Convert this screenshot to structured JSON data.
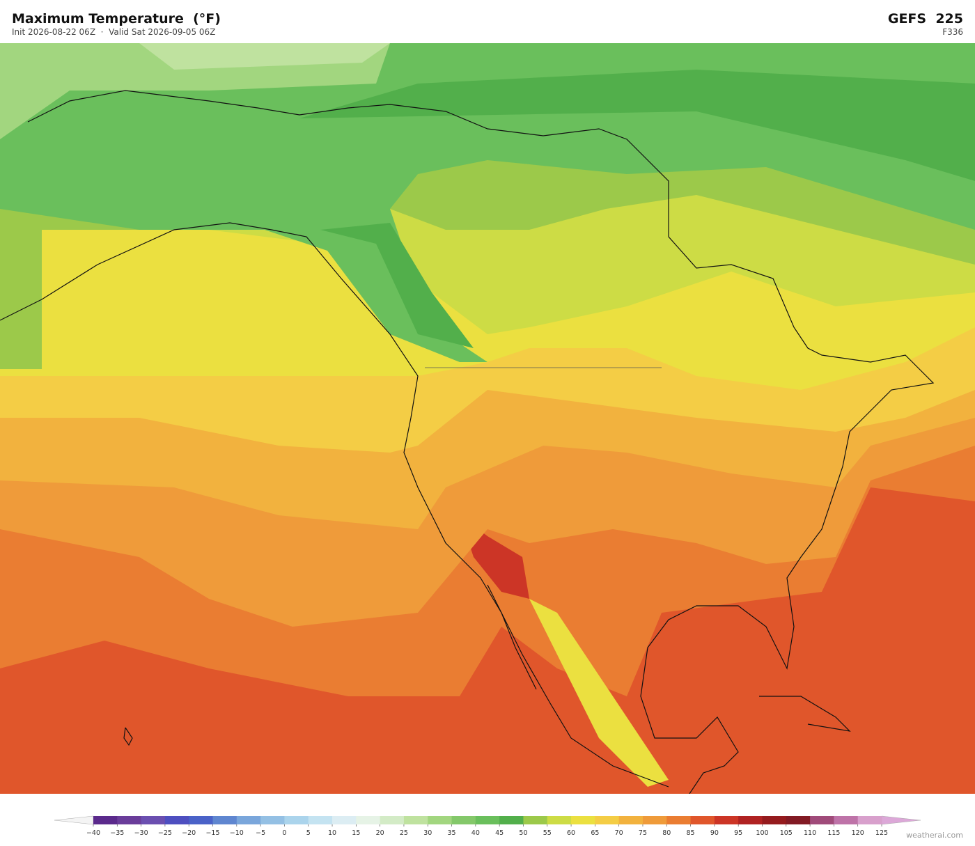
{
  "header": {
    "title": "Maximum Temperature  (°F)",
    "subtitle": "Init 2026-08-22 06Z  ·  Valid Sat 2026-09-05 06Z",
    "model": "GEFS  225",
    "forecast_hour": "F336"
  },
  "colorbar": {
    "ticks": [
      {
        "value": -40,
        "label": "−40"
      },
      {
        "value": -35,
        "label": "−35"
      },
      {
        "value": -30,
        "label": "−30"
      },
      {
        "value": -25,
        "label": "−25"
      },
      {
        "value": -20,
        "label": "−20"
      },
      {
        "value": -15,
        "label": "−15"
      },
      {
        "value": -10,
        "label": "−10"
      },
      {
        "value": -5,
        "label": "−5"
      },
      0,
      5,
      10,
      15,
      20,
      25,
      30,
      35,
      40,
      45,
      50,
      55,
      60,
      65,
      70,
      75,
      80,
      85,
      90,
      95,
      100,
      105,
      110,
      115,
      120,
      125
    ],
    "colors": [
      "#5b2a8c",
      "#6a3d9a",
      "#6b4fb0",
      "#4e4fc0",
      "#4a62c8",
      "#5f86d0",
      "#7aa6db",
      "#94c0e4",
      "#abd4ec",
      "#c4e3f1",
      "#dcedf3",
      "#e6f3e6",
      "#d3ebc6",
      "#bfe29f",
      "#a2d67f",
      "#84c86a",
      "#6abf5c",
      "#52af4b",
      "#9cc94a",
      "#cddc45",
      "#ebe040",
      "#f4cd45",
      "#f2b23e",
      "#ef9b3a",
      "#ea7d32",
      "#e0562b",
      "#cc3526",
      "#b02222",
      "#951b1e",
      "#821a24",
      "#a04b7a",
      "#be73a8",
      "#d8a0cc"
    ],
    "under_color": "#f4f4f4",
    "over_color": "#dca8d8"
  },
  "watermark": "weatherai.com"
}
